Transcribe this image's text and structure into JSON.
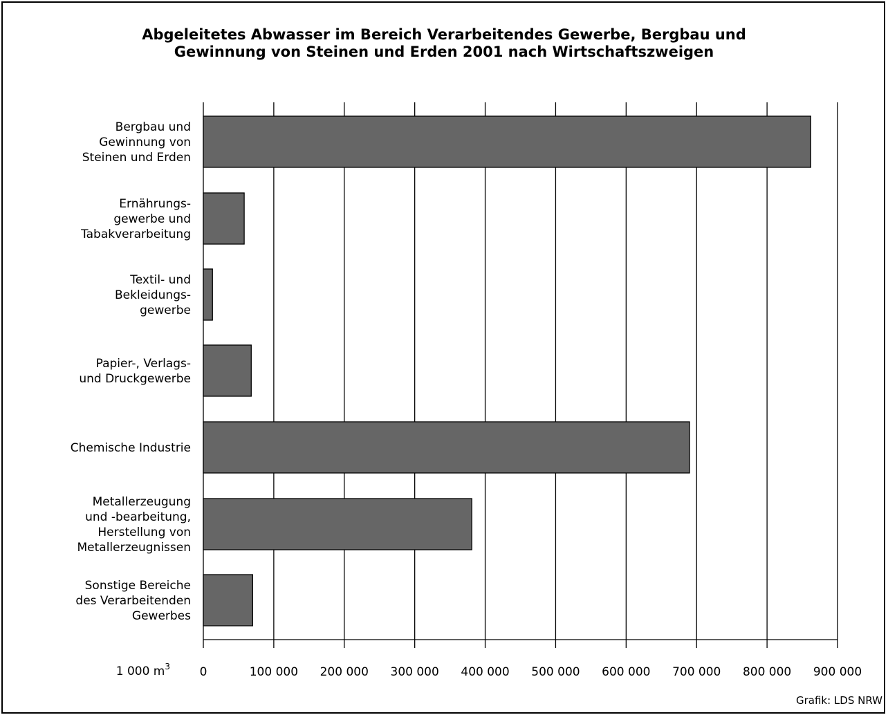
{
  "chart_data": {
    "type": "bar",
    "orientation": "horizontal",
    "title": "Abgeleitetes Abwasser im Bereich Verarbeitendes Gewerbe, Bergbau und Gewinnung von Steinen und Erden 2001 nach Wirtschaftszweigen",
    "title_lines": [
      "Abgeleitetes Abwasser im Bereich Verarbeitendes Gewerbe, Bergbau und",
      "Gewinnung von Steinen und Erden 2001 nach Wirtschaftszweigen"
    ],
    "unit_label": "1 000 m",
    "unit_exponent": "3",
    "categories": [
      [
        "Bergbau und",
        "Gewinnung von",
        "Steinen und Erden"
      ],
      [
        "Ernährungs-",
        "gewerbe und",
        "Tabakverarbeitung"
      ],
      [
        "Textil- und",
        "Bekleidungs-",
        "gewerbe"
      ],
      [
        "Papier-, Verlags-",
        "und Druckgewerbe"
      ],
      [
        "Chemische Industrie"
      ],
      [
        "Metallerzeugung",
        "und -bearbeitung,",
        "Herstellung von",
        "Metallerzeugnissen"
      ],
      [
        "Sonstige Bereiche",
        "des Verarbeitenden",
        "Gewerbes"
      ]
    ],
    "values": [
      862000,
      58000,
      13000,
      68000,
      690000,
      381000,
      70000
    ],
    "xlim": [
      0,
      900000
    ],
    "xticks": [
      0,
      100000,
      200000,
      300000,
      400000,
      500000,
      600000,
      700000,
      800000,
      900000
    ],
    "xtick_labels": [
      "0",
      "100 000",
      "200 000",
      "300 000",
      "400 000",
      "500 000",
      "600 000",
      "700 000",
      "800 000",
      "900 000"
    ],
    "grid": true,
    "bar_color": "#666666",
    "source": "Grafik: LDS NRW"
  }
}
